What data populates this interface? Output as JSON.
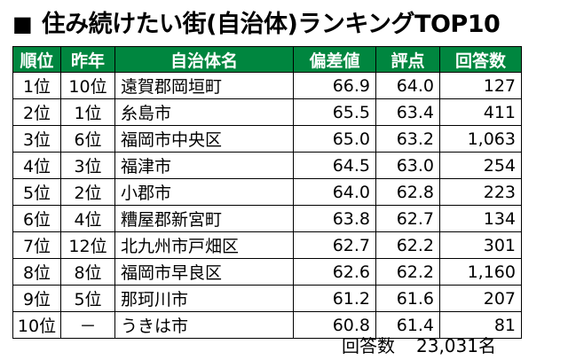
{
  "title": {
    "marker": "■",
    "text": "住み続けたい街(自治体)ランキングTOP10"
  },
  "table": {
    "headers": [
      "順位",
      "昨年",
      "自治体名",
      "偏差値",
      "評点",
      "回答数"
    ],
    "rows": [
      {
        "rank": "1位",
        "last_year": "10位",
        "name": "遠賀郡岡垣町",
        "deviation": "66.9",
        "score": "64.0",
        "responses": "127"
      },
      {
        "rank": "2位",
        "last_year": "1位",
        "name": "糸島市",
        "deviation": "65.5",
        "score": "63.4",
        "responses": "411"
      },
      {
        "rank": "3位",
        "last_year": "6位",
        "name": "福岡市中央区",
        "deviation": "65.0",
        "score": "63.2",
        "responses": "1,063"
      },
      {
        "rank": "4位",
        "last_year": "3位",
        "name": "福津市",
        "deviation": "64.5",
        "score": "63.0",
        "responses": "254"
      },
      {
        "rank": "5位",
        "last_year": "2位",
        "name": "小郡市",
        "deviation": "64.0",
        "score": "62.8",
        "responses": "223"
      },
      {
        "rank": "6位",
        "last_year": "4位",
        "name": "糟屋郡新宮町",
        "deviation": "63.8",
        "score": "62.7",
        "responses": "134"
      },
      {
        "rank": "7位",
        "last_year": "12位",
        "name": "北九州市戸畑区",
        "deviation": "62.7",
        "score": "62.2",
        "responses": "301"
      },
      {
        "rank": "8位",
        "last_year": "8位",
        "name": "福岡市早良区",
        "deviation": "62.6",
        "score": "62.2",
        "responses": "1,160"
      },
      {
        "rank": "9位",
        "last_year": "5位",
        "name": "那珂川市",
        "deviation": "61.2",
        "score": "61.6",
        "responses": "207"
      },
      {
        "rank": "10位",
        "last_year": "－",
        "name": "うきは市",
        "deviation": "60.8",
        "score": "61.4",
        "responses": "81"
      }
    ]
  },
  "footer": {
    "label": "回答数",
    "value": "23,031名"
  },
  "colors": {
    "header_bg": "#00863f",
    "header_text": "#ffffff",
    "border": "#000000"
  }
}
